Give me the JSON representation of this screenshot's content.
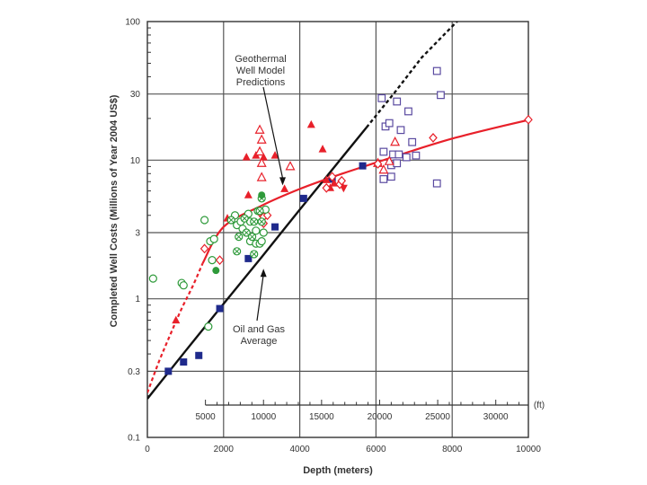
{
  "chart_data": {
    "type": "scatter",
    "title": "",
    "xlabel": "Depth (meters)",
    "ylabel": "Completed Well Costs (Millions of Year 2004 US$)",
    "xlim": [
      0,
      10000
    ],
    "ylim": [
      0.1,
      100
    ],
    "y_scale": "log",
    "grid": true,
    "x_ticks": [
      "0",
      "2000",
      "4000",
      "6000",
      "8000",
      "10000"
    ],
    "y_ticks": [
      {
        "value": 0.1,
        "label": "0.1"
      },
      {
        "value": 0.3,
        "label": "0.3"
      },
      {
        "value": 1,
        "label": "1"
      },
      {
        "value": 3,
        "label": "3"
      },
      {
        "value": 10,
        "label": "10"
      },
      {
        "value": 30,
        "label": "30"
      },
      {
        "value": 100,
        "label": "100"
      }
    ],
    "secondary_x_axis": {
      "unit": "(ft)",
      "ticks": [
        "5000",
        "10000",
        "15000",
        "20000",
        "25000",
        "30000"
      ],
      "tick_values_ft": [
        5000,
        10000,
        15000,
        20000,
        25000,
        30000
      ],
      "range_ft": [
        5000,
        32800
      ]
    },
    "annotations": [
      {
        "lines": [
          "Geothermal",
          "Well Model",
          "Predictions"
        ],
        "points_to": [
          3550,
          6.2
        ]
      },
      {
        "lines": [
          "Oil and Gas",
          "Average"
        ],
        "points_to": [
          3000,
          1.8
        ]
      }
    ],
    "colors": {
      "red": "#e8202a",
      "green": "#2e9a3a",
      "navy": "#1f2a8c",
      "purple": "#5a4aa0",
      "black": "#111111",
      "grid": "#555555"
    },
    "series": [
      {
        "name": "Oil and Gas Average trend",
        "kind": "line",
        "color": "#111111",
        "points": [
          [
            0,
            0.19
          ],
          [
            1000,
            0.42
          ],
          [
            2000,
            0.92
          ],
          [
            3000,
            2.0
          ],
          [
            4000,
            4.4
          ],
          [
            5000,
            9.6
          ],
          [
            5750,
            17.2
          ]
        ]
      },
      {
        "name": "Oil and Gas Average trend (extrapolated)",
        "kind": "dashed-line",
        "color": "#111111",
        "points": [
          [
            5750,
            17.2
          ],
          [
            6500,
            31
          ],
          [
            7200,
            55
          ],
          [
            8200,
            105
          ]
        ]
      },
      {
        "name": "Geothermal Well Model Predictions",
        "kind": "line",
        "color": "#e8202a",
        "points": [
          [
            1450,
            1.8
          ],
          [
            2000,
            3.3
          ],
          [
            3000,
            4.7
          ],
          [
            4000,
            6.2
          ],
          [
            5000,
            7.8
          ],
          [
            6000,
            9.6
          ],
          [
            7000,
            11.8
          ],
          [
            8000,
            14.3
          ],
          [
            9000,
            16.8
          ],
          [
            10000,
            19.5
          ]
        ]
      },
      {
        "name": "Geothermal Well Model Predictions (extrapolated)",
        "kind": "dashed-line",
        "color": "#e8202a",
        "points": [
          [
            0,
            0.21
          ],
          [
            300,
            0.35
          ],
          [
            600,
            0.55
          ],
          [
            900,
            0.85
          ],
          [
            1200,
            1.25
          ],
          [
            1450,
            1.8
          ]
        ]
      },
      {
        "name": "Oil and Gas wells (filled squares)",
        "marker": "square-filled",
        "color": "#1f2a8c",
        "points": [
          [
            550,
            0.3
          ],
          [
            950,
            0.35
          ],
          [
            1350,
            0.39
          ],
          [
            1900,
            0.85
          ],
          [
            2650,
            1.95
          ],
          [
            3350,
            3.3
          ],
          [
            4100,
            5.3
          ],
          [
            4850,
            7.3
          ],
          [
            5650,
            9.1
          ]
        ]
      },
      {
        "name": "Geothermal wells (open squares)",
        "marker": "square-open",
        "color": "#5a4aa0",
        "points": [
          [
            6150,
            28
          ],
          [
            6250,
            17.5
          ],
          [
            6550,
            26.5
          ],
          [
            6850,
            22.5
          ],
          [
            6350,
            18.5
          ],
          [
            6650,
            16.5
          ],
          [
            6950,
            13.5
          ],
          [
            6200,
            11.5
          ],
          [
            6450,
            11
          ],
          [
            6600,
            11
          ],
          [
            6800,
            10.5
          ],
          [
            7050,
            10.8
          ],
          [
            6400,
            9.2
          ],
          [
            6550,
            9.5
          ],
          [
            6200,
            7.3
          ],
          [
            6400,
            7.6
          ],
          [
            7600,
            44
          ],
          [
            7700,
            29.5
          ],
          [
            7600,
            6.8
          ]
        ]
      },
      {
        "name": "Geothermal wells (filled triangles)",
        "marker": "triangle-filled",
        "color": "#e8202a",
        "points": [
          [
            750,
            0.7
          ],
          [
            2100,
            3.8
          ],
          [
            2650,
            5.6
          ],
          [
            2600,
            10.5
          ],
          [
            2850,
            10.8
          ],
          [
            3050,
            10.5
          ],
          [
            3350,
            10.8
          ],
          [
            3600,
            6.2
          ],
          [
            4300,
            18
          ],
          [
            4600,
            12
          ],
          [
            4700,
            7.2
          ],
          [
            4800,
            6.3
          ],
          [
            4900,
            6.8
          ]
        ]
      },
      {
        "name": "Geothermal wells (open triangles)",
        "marker": "triangle-open",
        "color": "#e8202a",
        "points": [
          [
            2950,
            16.5
          ],
          [
            3000,
            14
          ],
          [
            2950,
            11.5
          ],
          [
            3000,
            9.5
          ],
          [
            3000,
            7.5
          ],
          [
            3750,
            9.0
          ],
          [
            6050,
            9.5
          ],
          [
            6500,
            13.5
          ],
          [
            6350,
            9.8
          ],
          [
            6200,
            8.5
          ]
        ]
      },
      {
        "name": "Filled triangle (down)",
        "marker": "triangle-down-filled",
        "color": "#e8202a",
        "points": [
          [
            5150,
            6.3
          ]
        ]
      },
      {
        "name": "Geothermal wells (open diamonds)",
        "marker": "diamond-open",
        "color": "#e8202a",
        "points": [
          [
            1500,
            2.3
          ],
          [
            1900,
            1.9
          ],
          [
            2950,
            4.2
          ],
          [
            3050,
            3.9
          ],
          [
            3050,
            3.5
          ],
          [
            3150,
            4.0
          ],
          [
            4700,
            6.3
          ],
          [
            4850,
            7.6
          ],
          [
            5050,
            6.7
          ],
          [
            5100,
            7.1
          ],
          [
            6050,
            9.4
          ],
          [
            7500,
            14.5
          ],
          [
            10000,
            19.6
          ]
        ]
      },
      {
        "name": "Geothermal wells (open circles)",
        "marker": "circle-open",
        "color": "#2e9a3a",
        "points": [
          [
            150,
            1.4
          ],
          [
            900,
            1.3
          ],
          [
            950,
            1.25
          ],
          [
            1500,
            3.7
          ],
          [
            1650,
            2.6
          ],
          [
            1700,
            1.9
          ],
          [
            1600,
            0.63
          ],
          [
            1750,
            2.7
          ],
          [
            2300,
            4.0
          ],
          [
            2350,
            3.4
          ],
          [
            2450,
            3.6
          ],
          [
            2500,
            3.2
          ],
          [
            2650,
            4.1
          ],
          [
            2700,
            3.6
          ],
          [
            2850,
            3.1
          ],
          [
            2700,
            2.6
          ],
          [
            2850,
            2.5
          ],
          [
            2950,
            2.5
          ],
          [
            3000,
            2.6
          ],
          [
            3050,
            3.0
          ],
          [
            3100,
            4.4
          ]
        ]
      },
      {
        "name": "Geothermal wells (circle with cross)",
        "marker": "circle-x",
        "color": "#2e9a3a",
        "points": [
          [
            2200,
            3.7
          ],
          [
            2400,
            2.8
          ],
          [
            2550,
            3.8
          ],
          [
            2600,
            3.0
          ],
          [
            2750,
            2.8
          ],
          [
            2800,
            3.6
          ],
          [
            2900,
            4.3
          ],
          [
            3000,
            5.3
          ],
          [
            2950,
            4.3
          ],
          [
            3000,
            3.6
          ],
          [
            2800,
            2.1
          ],
          [
            2350,
            2.2
          ]
        ]
      },
      {
        "name": "Geothermal wells (filled circles)",
        "marker": "circle-filled",
        "color": "#2e9a3a",
        "points": [
          [
            1800,
            1.6
          ],
          [
            3000,
            5.6
          ]
        ]
      }
    ]
  }
}
